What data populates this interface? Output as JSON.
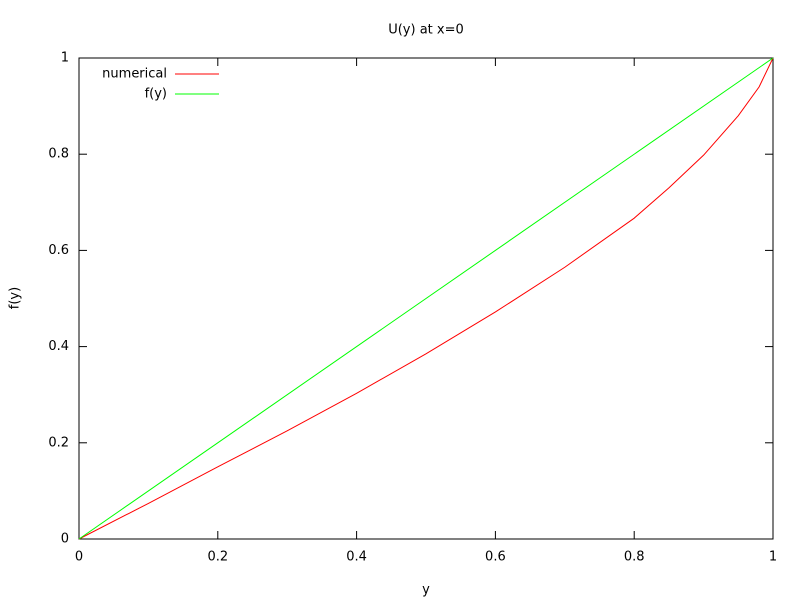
{
  "chart_data": {
    "type": "line",
    "title": "U(y) at x=0",
    "x_label": "y",
    "y_label": "f(y)",
    "xlim": [
      0,
      1
    ],
    "ylim": [
      0,
      1
    ],
    "xticks": [
      0,
      0.2,
      0.4,
      0.6,
      0.8,
      1
    ],
    "yticks": [
      0,
      0.2,
      0.4,
      0.6,
      0.8,
      1
    ],
    "legend": "top-left",
    "series": [
      {
        "name": "numerical",
        "color": "#ff0000",
        "x": [
          0,
          0.1,
          0.2,
          0.3,
          0.4,
          0.5,
          0.6,
          0.7,
          0.8,
          0.85,
          0.9,
          0.95,
          0.98,
          1
        ],
        "values": [
          0,
          0.074,
          0.15,
          0.225,
          0.303,
          0.385,
          0.472,
          0.565,
          0.667,
          0.73,
          0.798,
          0.88,
          0.94,
          1
        ]
      },
      {
        "name": "f(y)",
        "color": "#00ff00",
        "x": [
          0,
          1
        ],
        "values": [
          0,
          1
        ]
      }
    ]
  }
}
